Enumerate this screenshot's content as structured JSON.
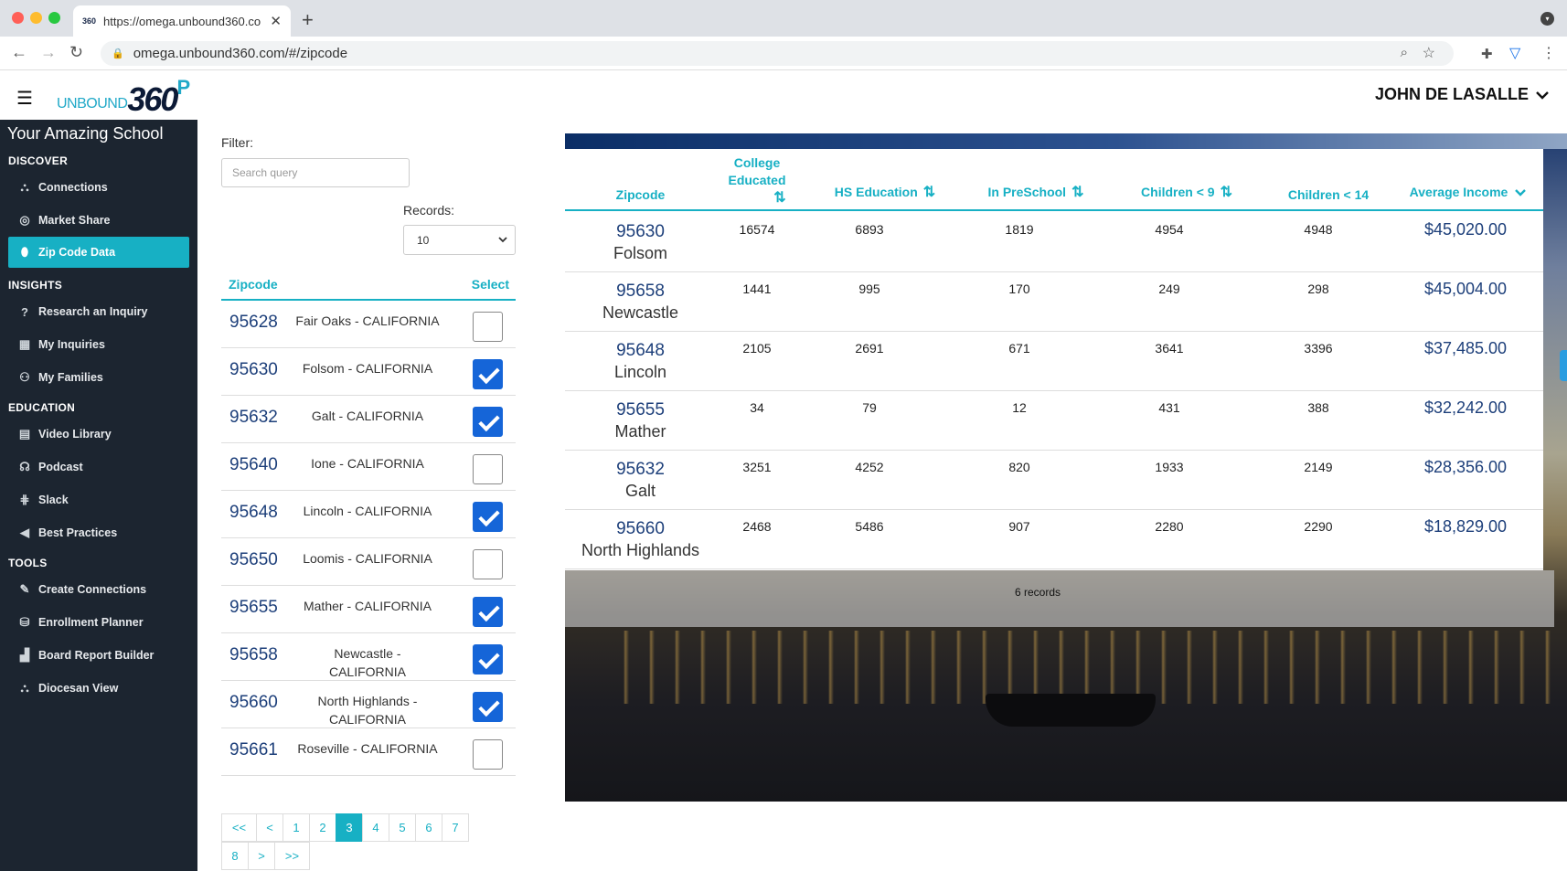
{
  "browser": {
    "tab_title": "https://omega.unbound360.co",
    "tab_favicon": "360",
    "url": "omega.unbound360.com/#/zipcode",
    "icons": [
      "back-icon",
      "forward-icon",
      "reload-icon",
      "lock-icon",
      "zoom-icon",
      "star-icon",
      "extensions-icon",
      "vpn-icon",
      "kebab-icon"
    ]
  },
  "header": {
    "logo_unbound": "UNBOUND",
    "logo_360": "360",
    "logo_p": "P",
    "user_name": "JOHN DE LASALLE"
  },
  "sidebar": {
    "school_name": "Your Amazing School",
    "sections": [
      {
        "title": "DISCOVER",
        "items": [
          {
            "label": "Connections",
            "icon": "sitemap-icon"
          },
          {
            "label": "Market Share",
            "icon": "target-icon"
          },
          {
            "label": "Zip Code Data",
            "icon": "map-pin-icon",
            "active": true
          }
        ]
      },
      {
        "title": "INSIGHTS",
        "items": [
          {
            "label": "Research an Inquiry",
            "icon": "question-icon"
          },
          {
            "label": "My Inquiries",
            "icon": "map-icon"
          },
          {
            "label": "My Families",
            "icon": "users-icon"
          }
        ]
      },
      {
        "title": "EDUCATION",
        "items": [
          {
            "label": "Video Library",
            "icon": "film-icon"
          },
          {
            "label": "Podcast",
            "icon": "headphones-icon"
          },
          {
            "label": "Slack",
            "icon": "slack-icon"
          },
          {
            "label": "Best Practices",
            "icon": "bullhorn-icon"
          }
        ]
      },
      {
        "title": "TOOLS",
        "items": [
          {
            "label": "Create Connections",
            "icon": "magic-icon"
          },
          {
            "label": "Enrollment Planner",
            "icon": "cubes-icon"
          },
          {
            "label": "Board Report Builder",
            "icon": "chart-icon"
          },
          {
            "label": "Diocesan View",
            "icon": "hierarchy-icon"
          }
        ]
      }
    ]
  },
  "filter": {
    "label": "Filter:",
    "placeholder": "Search query",
    "records_label": "Records:",
    "records_value": "10"
  },
  "zip_list": {
    "header_zip": "Zipcode",
    "header_select": "Select",
    "rows": [
      {
        "zip": "95628",
        "city": "Fair Oaks - CALIFORNIA",
        "checked": false
      },
      {
        "zip": "95630",
        "city": "Folsom - CALIFORNIA",
        "checked": true
      },
      {
        "zip": "95632",
        "city": "Galt - CALIFORNIA",
        "checked": true
      },
      {
        "zip": "95640",
        "city": "Ione - CALIFORNIA",
        "checked": false
      },
      {
        "zip": "95648",
        "city": "Lincoln - CALIFORNIA",
        "checked": true
      },
      {
        "zip": "95650",
        "city": "Loomis - CALIFORNIA",
        "checked": false
      },
      {
        "zip": "95655",
        "city": "Mather - CALIFORNIA",
        "checked": true
      },
      {
        "zip": "95658",
        "city": "Newcastle - CALIFORNIA",
        "checked": true
      },
      {
        "zip": "95660",
        "city": "North Highlands - CALIFORNIA",
        "checked": true
      },
      {
        "zip": "95661",
        "city": "Roseville - CALIFORNIA",
        "checked": false
      }
    ]
  },
  "pager": {
    "items": [
      "<<",
      "<",
      "1",
      "2",
      "3",
      "4",
      "5",
      "6",
      "7",
      "8",
      ">",
      ">>"
    ],
    "active": "3"
  },
  "data_table": {
    "headers": {
      "zipcode": "Zipcode",
      "college": "College Educated",
      "hs": "HS Education",
      "preschool": "In PreSchool",
      "children9": "Children < 9",
      "children14": "Children < 14",
      "income": "Average Income"
    },
    "rows": [
      {
        "zip": "95630",
        "city": "Folsom",
        "college": "16574",
        "hs": "6893",
        "preschool": "1819",
        "c9": "4954",
        "c14": "4948",
        "income": "$45,020.00"
      },
      {
        "zip": "95658",
        "city": "Newcastle",
        "college": "1441",
        "hs": "995",
        "preschool": "170",
        "c9": "249",
        "c14": "298",
        "income": "$45,004.00"
      },
      {
        "zip": "95648",
        "city": "Lincoln",
        "college": "2105",
        "hs": "2691",
        "preschool": "671",
        "c9": "3641",
        "c14": "3396",
        "income": "$37,485.00"
      },
      {
        "zip": "95655",
        "city": "Mather",
        "college": "34",
        "hs": "79",
        "preschool": "12",
        "c9": "431",
        "c14": "388",
        "income": "$32,242.00"
      },
      {
        "zip": "95632",
        "city": "Galt",
        "college": "3251",
        "hs": "4252",
        "preschool": "820",
        "c9": "1933",
        "c14": "2149",
        "income": "$28,356.00"
      },
      {
        "zip": "95660",
        "city": "North Highlands",
        "college": "2468",
        "hs": "5486",
        "preschool": "907",
        "c9": "2280",
        "c14": "2290",
        "income": "$18,829.00"
      }
    ],
    "records_text": "6 records"
  },
  "colors": {
    "accent": "#17b0c4",
    "sidebar_bg": "#1c2530",
    "link_blue": "#1d3f7a",
    "checkbox_blue": "#1565d8"
  }
}
